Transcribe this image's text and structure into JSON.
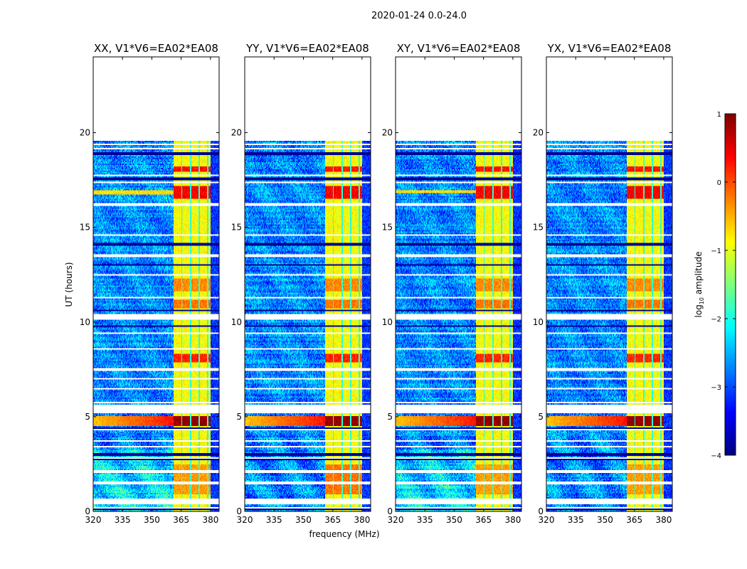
{
  "chart_data": {
    "type": "heatmap",
    "suptitle": "2020-01-24 0.0-24.0",
    "xlabel": "frequency (MHz)",
    "ylabel": "UT (hours)",
    "xlim": [
      320,
      384.4
    ],
    "ylim": [
      0,
      24
    ],
    "xticks": [
      "320",
      "335",
      "350",
      "365",
      "380"
    ],
    "xtick_values": [
      320,
      335,
      350,
      365,
      380
    ],
    "yticks": [
      "0",
      "5",
      "10",
      "15",
      "20"
    ],
    "ytick_values": [
      0,
      5,
      10,
      15,
      20
    ],
    "colormap": "jet",
    "colorbar": {
      "label_main": "log",
      "label_sub": "10",
      "label_rest": " amplitude",
      "range": [
        -4,
        1
      ],
      "ticks": [
        "1",
        "0",
        "−1",
        "−2",
        "−3",
        "−4"
      ],
      "tick_values": [
        1,
        0,
        -1,
        -2,
        -3,
        -4
      ]
    },
    "panels": [
      {
        "title": "XX, V1*V6=EA02*EA08",
        "broadband_rfi_hours": [
          16.75,
          16.95
        ]
      },
      {
        "title": "YY, V1*V6=EA02*EA08",
        "broadband_rfi_hours": []
      },
      {
        "title": "XY, V1*V6=EA02*EA08",
        "broadband_rfi_hours": [
          16.8,
          16.95
        ]
      },
      {
        "title": "YX, V1*V6=EA02*EA08",
        "broadband_rfi_hours": []
      }
    ],
    "data_time_range_hours": [
      0,
      19.6
    ],
    "background_log_amplitude": -2.7,
    "band": {
      "freq_range_mhz": [
        361,
        380
      ],
      "log_amplitude": -0.9,
      "subband_edges_mhz": [
        365.3,
        369.8,
        374.3,
        378.6
      ]
    },
    "band_bursts": [
      {
        "hours": [
          4.5,
          5.05
        ],
        "log_amplitude": 0.9
      },
      {
        "hours": [
          16.5,
          17.2
        ],
        "log_amplitude": 0.4
      },
      {
        "hours": [
          17.9,
          18.2
        ],
        "log_amplitude": 0.3
      },
      {
        "hours": [
          7.9,
          8.3
        ],
        "log_amplitude": 0.2
      },
      {
        "hours": [
          10.7,
          11.2
        ],
        "log_amplitude": -0.2
      },
      {
        "hours": [
          11.6,
          12.3
        ],
        "log_amplitude": -0.3
      },
      {
        "hours": [
          0.9,
          2.5
        ],
        "log_amplitude": -0.4
      }
    ],
    "flagged_gaps_hours": [
      [
        0.37,
        0.64
      ],
      [
        5.18,
        5.59
      ],
      [
        10.1,
        10.4
      ]
    ],
    "flagged_rows_hours": [
      19.42,
      19.15,
      17.75,
      17.35,
      16.2,
      14.6,
      13.5,
      12.5,
      11.3,
      9.4,
      8.6,
      7.5,
      7.0,
      6.5,
      5.72,
      4.3,
      3.7,
      3.4,
      2.8,
      2.1,
      1.5,
      0.2
    ],
    "dark_rows_hours": [
      18.9,
      17.55,
      14.1,
      13.0,
      10.6,
      9.8,
      4.4,
      3.0,
      2.75,
      0.1
    ]
  }
}
